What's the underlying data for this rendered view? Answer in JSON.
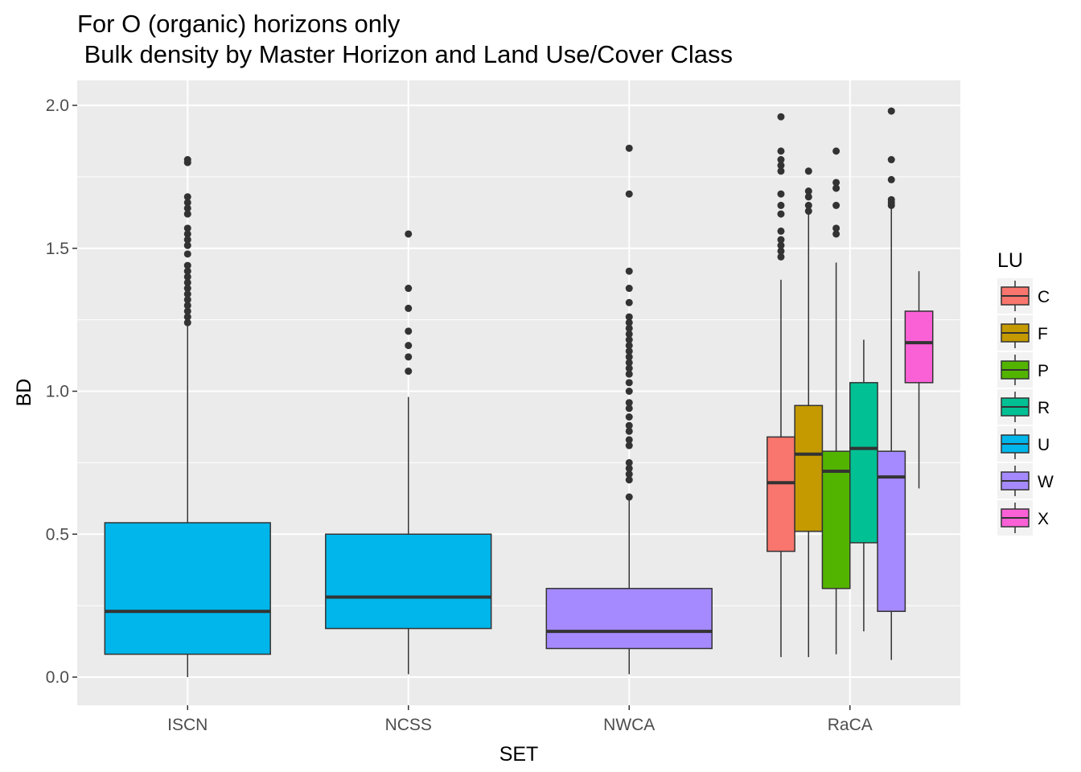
{
  "chart_data": {
    "type": "boxplot",
    "title_lines": [
      "For O (organic) horizons only",
      " Bulk density by Master Horizon and Land Use/Cover Class"
    ],
    "xlabel": "SET",
    "ylabel": "BD",
    "ylim": [
      -0.1,
      2.08
    ],
    "y_ticks": [
      0.0,
      0.5,
      1.0,
      1.5,
      2.0
    ],
    "y_tick_labels": [
      "0.0",
      "0.5",
      "1.0",
      "1.5",
      "2.0"
    ],
    "categories": [
      "ISCN",
      "NCSS",
      "NWCA",
      "RaCA"
    ],
    "grid": true,
    "legend": {
      "title": "LU",
      "position": "right",
      "items": [
        {
          "label": "C",
          "color": "#F8766D"
        },
        {
          "label": "F",
          "color": "#C49A00"
        },
        {
          "label": "P",
          "color": "#53B400"
        },
        {
          "label": "R",
          "color": "#00C094"
        },
        {
          "label": "U",
          "color": "#00B6EB"
        },
        {
          "label": "W",
          "color": "#A58AFF"
        },
        {
          "label": "X",
          "color": "#FB61D7"
        }
      ]
    },
    "boxes": [
      {
        "set": "ISCN",
        "lu": "U",
        "min": 0.0,
        "q1": 0.08,
        "median": 0.23,
        "q3": 0.54,
        "max": 1.23,
        "outliers": [
          1.24,
          1.26,
          1.28,
          1.3,
          1.32,
          1.34,
          1.36,
          1.38,
          1.4,
          1.42,
          1.44,
          1.48,
          1.51,
          1.53,
          1.55,
          1.57,
          1.62,
          1.64,
          1.66,
          1.68,
          1.8,
          1.81
        ]
      },
      {
        "set": "NCSS",
        "lu": "U",
        "min": 0.01,
        "q1": 0.17,
        "median": 0.28,
        "q3": 0.5,
        "max": 0.98,
        "outliers": [
          1.07,
          1.12,
          1.16,
          1.21,
          1.29,
          1.36,
          1.55
        ]
      },
      {
        "set": "NWCA",
        "lu": "W",
        "min": 0.01,
        "q1": 0.1,
        "median": 0.16,
        "q3": 0.31,
        "max": 0.62,
        "outliers": [
          0.63,
          0.69,
          0.71,
          0.73,
          0.75,
          0.81,
          0.83,
          0.86,
          0.88,
          0.91,
          0.94,
          0.96,
          1.0,
          1.03,
          1.06,
          1.08,
          1.1,
          1.12,
          1.14,
          1.16,
          1.18,
          1.2,
          1.22,
          1.24,
          1.26,
          1.31,
          1.36,
          1.42,
          1.69,
          1.85
        ]
      },
      {
        "set": "RaCA",
        "lu": "C",
        "min": 0.07,
        "q1": 0.44,
        "median": 0.68,
        "q3": 0.84,
        "max": 1.39,
        "outliers": [
          1.47,
          1.49,
          1.51,
          1.53,
          1.56,
          1.62,
          1.65,
          1.69,
          1.77,
          1.79,
          1.81,
          1.84,
          1.96
        ]
      },
      {
        "set": "RaCA",
        "lu": "F",
        "min": 0.07,
        "q1": 0.51,
        "median": 0.78,
        "q3": 0.95,
        "max": 1.62,
        "outliers": [
          1.63,
          1.65,
          1.68,
          1.7,
          1.77
        ]
      },
      {
        "set": "RaCA",
        "lu": "P",
        "min": 0.08,
        "q1": 0.31,
        "median": 0.72,
        "q3": 0.79,
        "max": 1.45,
        "outliers": [
          1.55,
          1.57,
          1.65,
          1.71,
          1.73,
          1.84
        ]
      },
      {
        "set": "RaCA",
        "lu": "R",
        "min": 0.16,
        "q1": 0.47,
        "median": 0.8,
        "q3": 1.03,
        "max": 1.18,
        "outliers": []
      },
      {
        "set": "RaCA",
        "lu": "W",
        "min": 0.06,
        "q1": 0.23,
        "median": 0.7,
        "q3": 0.79,
        "max": 1.64,
        "outliers": [
          1.65,
          1.66,
          1.67,
          1.74,
          1.81,
          1.98
        ]
      },
      {
        "set": "RaCA",
        "lu": "X",
        "min": 0.66,
        "q1": 1.03,
        "median": 1.17,
        "q3": 1.28,
        "max": 1.42,
        "outliers": []
      }
    ]
  }
}
